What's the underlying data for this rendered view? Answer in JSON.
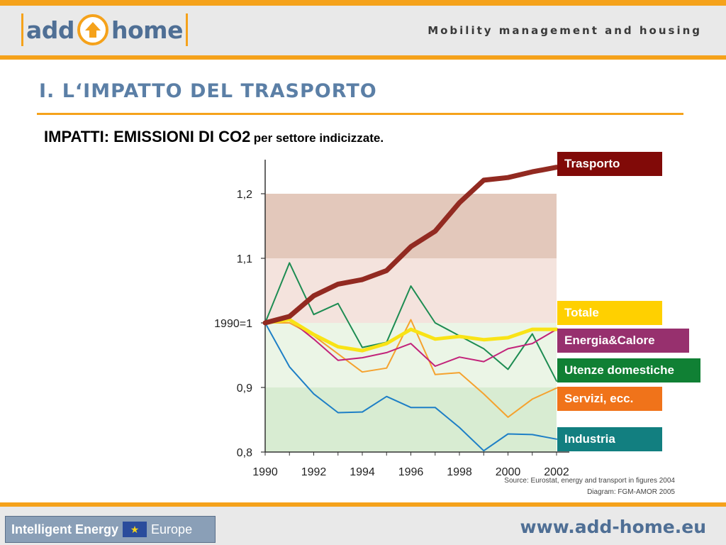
{
  "header": {
    "logo_left": "add",
    "logo_right": "home",
    "tagline": "Mobility management and housing"
  },
  "slide": {
    "title": "I. L‘IMPATTO DEL TRASPORTO",
    "subtitle_main": "IMPATTI: EMISSIONI DI CO2",
    "subtitle_rest": "per settore indicizzate."
  },
  "colors": {
    "accent": "#f5a21b",
    "title_blue": "#5b7fa6",
    "band_dark_red": "#e3c8bb",
    "band_light_red": "#f4e3dd",
    "band_light_green": "#ebf5e6",
    "band_dark_green": "#d8ecd2"
  },
  "chart_data": {
    "type": "line",
    "x": [
      1990,
      1991,
      1992,
      1993,
      1994,
      1995,
      1996,
      1997,
      1998,
      1999,
      2000,
      2001,
      2002
    ],
    "x_tick_labels": [
      "1990",
      "1992",
      "1994",
      "1996",
      "1998",
      "2000",
      "2002"
    ],
    "y_tick_labels": [
      "0,8",
      "0,9",
      "1990=1",
      "1,1",
      "1,2"
    ],
    "ylim": [
      0.8,
      1.25
    ],
    "bands": [
      {
        "from": 1.1,
        "to": 1.2,
        "color": "#e3c8bb"
      },
      {
        "from": 1.0,
        "to": 1.1,
        "color": "#f4e3dd"
      },
      {
        "from": 0.9,
        "to": 1.0,
        "color": "#ebf5e6"
      },
      {
        "from": 0.8,
        "to": 0.9,
        "color": "#d8ecd2"
      }
    ],
    "series": [
      {
        "name": "Industria",
        "color": "#1e7fc6",
        "label_color": "#127f80",
        "width": 2,
        "values": [
          1.0,
          0.932,
          0.89,
          0.861,
          0.862,
          0.886,
          0.869,
          0.869,
          0.838,
          0.802,
          0.828,
          0.827,
          0.82
        ]
      },
      {
        "name": "Servizi, ecc.",
        "color": "#f5a22e",
        "label_color": "#f0731a",
        "width": 2,
        "values": [
          1.0,
          1.0,
          0.98,
          0.952,
          0.924,
          0.93,
          1.005,
          0.92,
          0.923,
          0.89,
          0.854,
          0.882,
          0.899
        ]
      },
      {
        "name": "Utenze domestiche",
        "color": "#1d8c52",
        "label_color": "#108034",
        "width": 2,
        "values": [
          1.0,
          1.093,
          1.013,
          1.03,
          0.962,
          0.97,
          1.057,
          1.0,
          0.98,
          0.96,
          0.928,
          0.983,
          0.91
        ]
      },
      {
        "name": "Energia&Calore",
        "color": "#c2237a",
        "label_color": "#97306e",
        "width": 2,
        "values": [
          1.0,
          1.005,
          0.975,
          0.942,
          0.946,
          0.954,
          0.968,
          0.933,
          0.947,
          0.94,
          0.96,
          0.968,
          0.99
        ]
      },
      {
        "name": "Totale",
        "color": "#f9e316",
        "label_color": "#ffd000",
        "width": 5,
        "values": [
          1.0,
          1.005,
          0.982,
          0.963,
          0.957,
          0.968,
          0.99,
          0.975,
          0.979,
          0.974,
          0.977,
          0.99,
          0.99
        ]
      },
      {
        "name": "Trasporto",
        "color": "#922a21",
        "label_color": "#810a08",
        "width": 7,
        "values": [
          1.0,
          1.01,
          1.042,
          1.06,
          1.067,
          1.081,
          1.118,
          1.142,
          1.186,
          1.221,
          1.225,
          1.234,
          1.241
        ]
      }
    ],
    "source_lines": [
      "Source: Eurostat, energy and transport in figures 2004",
      "Diagram: FGM-AMOR 2005"
    ]
  },
  "footer": {
    "badge_strong": "Intelligent Energy",
    "badge_light": "Europe",
    "url": "www.add-home.eu"
  }
}
